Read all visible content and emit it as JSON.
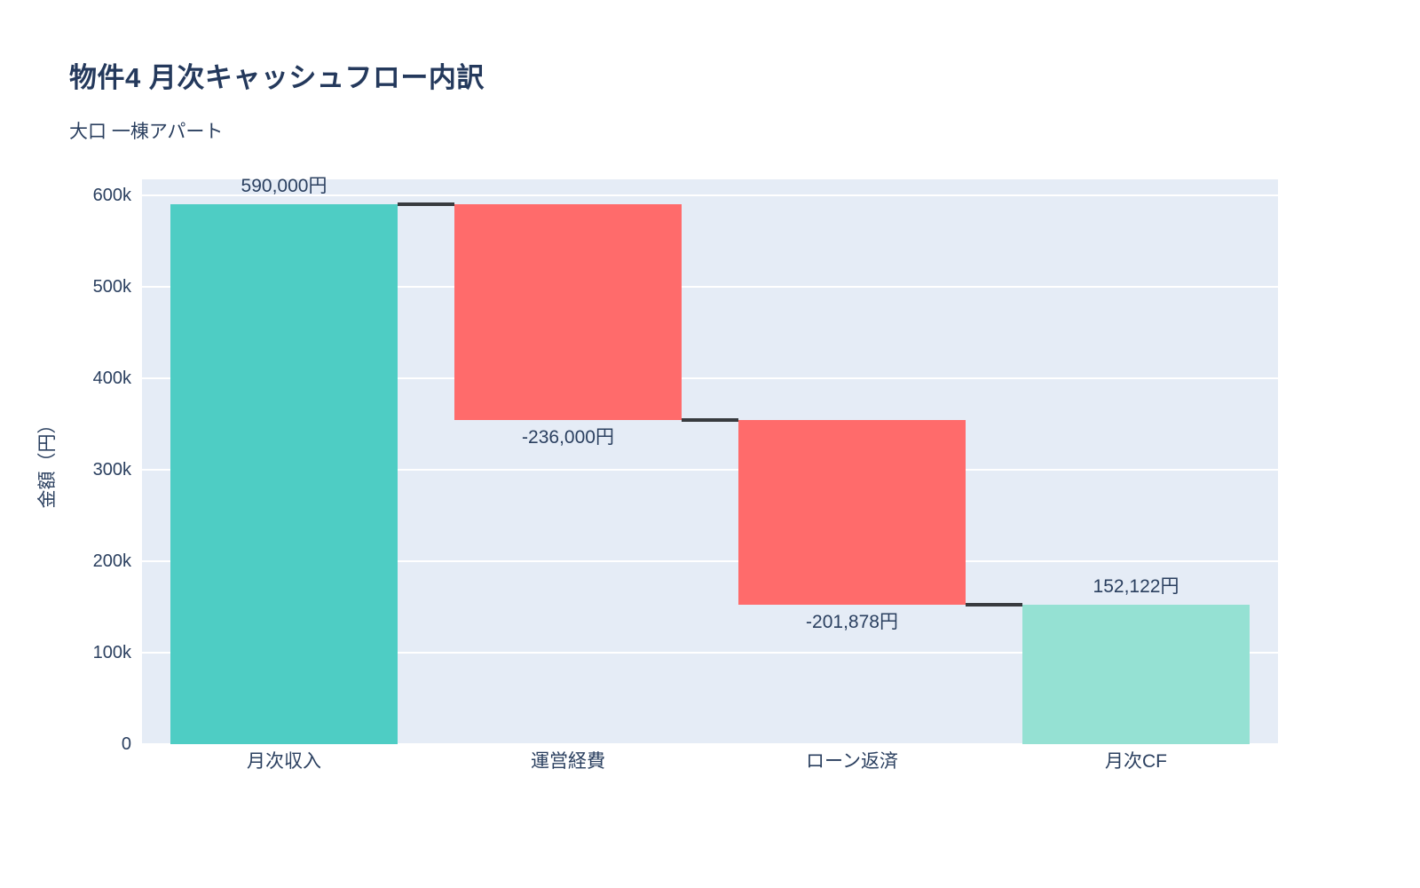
{
  "header": {
    "title": "物件4 月次キャッシュフロー内訳",
    "subtitle": "大口 一棟アパート"
  },
  "chart_data": {
    "type": "waterfall",
    "title": "物件4 月次キャッシュフロー内訳",
    "subtitle": "大口 一棟アパート",
    "xlabel": "",
    "ylabel": "金額（円）",
    "categories": [
      "月次収入",
      "運営経費",
      "ローン返済",
      "月次CF"
    ],
    "measures": [
      "relative",
      "relative",
      "relative",
      "total"
    ],
    "values": [
      590000,
      -236000,
      -201878,
      152122
    ],
    "value_labels": [
      "590,000円",
      "-236,000円",
      "-201,878円",
      "152,122円"
    ],
    "running_totals": [
      590000,
      354000,
      152122,
      152122
    ],
    "ylim": [
      0,
      618000
    ],
    "yticks": [
      {
        "value": 0,
        "label": "0"
      },
      {
        "value": 100000,
        "label": "100k"
      },
      {
        "value": 200000,
        "label": "200k"
      },
      {
        "value": 300000,
        "label": "300k"
      },
      {
        "value": 400000,
        "label": "400k"
      },
      {
        "value": 500000,
        "label": "500k"
      },
      {
        "value": 600000,
        "label": "600k"
      }
    ],
    "grid": true,
    "legend": "none",
    "colors": {
      "increasing": "#4ecdc4",
      "decreasing": "#ff6b6b",
      "total": "#95e1d3",
      "connector": "#383b3f",
      "plot_bg": "#e5ecf6",
      "gridline": "#ffffff",
      "text": "#2a3f5f"
    }
  }
}
